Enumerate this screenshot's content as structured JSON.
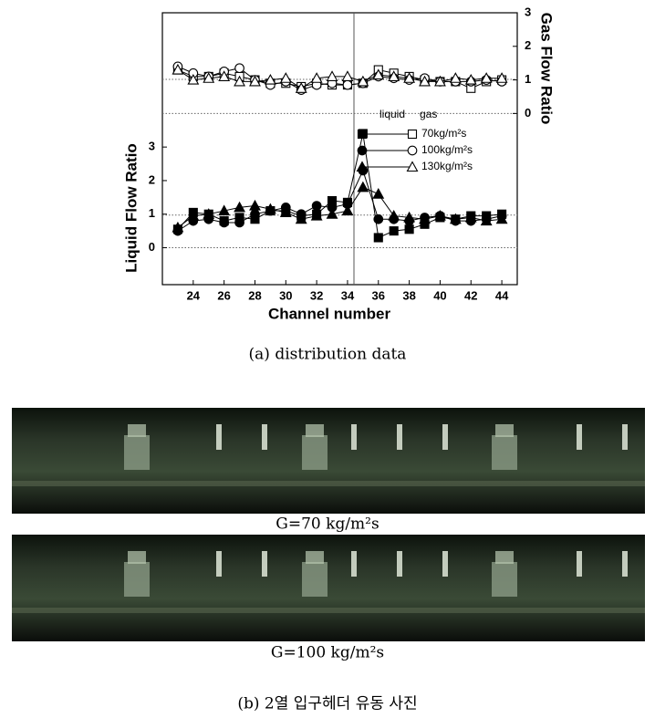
{
  "chart_data": {
    "type": "line",
    "x_label": "Channel number",
    "y_label": "Liquid Flow Ratio",
    "y2_label": "Gas Flow Ratio",
    "x": [
      23,
      24,
      25,
      26,
      27,
      28,
      29,
      30,
      31,
      32,
      33,
      34,
      35,
      36,
      37,
      38,
      39,
      40,
      41,
      42,
      43,
      44
    ],
    "xlim": [
      22,
      45
    ],
    "xticks": [
      24,
      26,
      28,
      30,
      32,
      34,
      36,
      38,
      40,
      42,
      44
    ],
    "ylim": [
      -1.1,
      7
    ],
    "yticks": [
      0,
      1,
      2,
      3
    ],
    "y2lim": [
      -5.1,
      3
    ],
    "y2ticks": [
      0,
      1,
      2,
      3
    ],
    "legend_columns": [
      "liquid",
      "gas"
    ],
    "series": [
      {
        "name": "70kg/m²s",
        "color": "#000000",
        "marker": "square",
        "liquid": [
          0.55,
          1.05,
          1.0,
          0.8,
          0.9,
          0.85,
          1.1,
          1.1,
          0.95,
          1.0,
          1.4,
          1.35,
          3.4,
          0.3,
          0.5,
          0.55,
          0.7,
          0.9,
          0.85,
          0.95,
          0.95,
          1.0
        ],
        "gas": [
          1.3,
          1.1,
          1.1,
          1.2,
          1.1,
          1.0,
          0.9,
          0.9,
          0.8,
          0.9,
          0.85,
          0.85,
          0.9,
          1.3,
          1.2,
          1.1,
          1.0,
          0.95,
          0.95,
          0.75,
          0.95,
          1.0
        ]
      },
      {
        "name": "100kg/m²s",
        "color": "#000000",
        "marker": "circle",
        "liquid": [
          0.5,
          0.8,
          0.85,
          0.75,
          0.75,
          1.0,
          1.1,
          1.2,
          1.0,
          1.25,
          1.2,
          1.3,
          2.3,
          0.85,
          0.85,
          0.8,
          0.9,
          0.95,
          0.8,
          0.8,
          0.85,
          0.95
        ],
        "gas": [
          1.4,
          1.2,
          1.1,
          1.25,
          1.35,
          1.0,
          0.85,
          0.95,
          0.7,
          0.85,
          0.9,
          0.85,
          0.9,
          1.1,
          1.05,
          1.0,
          1.05,
          0.95,
          0.95,
          0.95,
          1.0,
          0.95
        ]
      },
      {
        "name": "130kg/m²s",
        "color": "#000000",
        "marker": "triangle",
        "liquid": [
          0.6,
          0.95,
          1.0,
          1.1,
          1.2,
          1.25,
          1.15,
          1.05,
          0.85,
          0.95,
          1.0,
          1.1,
          1.8,
          1.6,
          0.95,
          0.9,
          0.85,
          0.95,
          0.85,
          0.9,
          0.8,
          0.85
        ],
        "gas": [
          1.3,
          1.0,
          1.05,
          1.1,
          0.95,
          0.95,
          1.0,
          1.05,
          0.75,
          1.05,
          1.1,
          1.1,
          0.95,
          1.15,
          1.1,
          1.05,
          0.95,
          0.95,
          1.05,
          1.0,
          1.05,
          1.05
        ]
      }
    ]
  },
  "figure_a_caption": "(a) distribution data",
  "photos": [
    {
      "caption": "G=70 kg/m²s"
    },
    {
      "caption": "G=100 kg/m²s"
    }
  ],
  "figure_b_caption": "(b) 2열 입구헤더 유동 사진"
}
